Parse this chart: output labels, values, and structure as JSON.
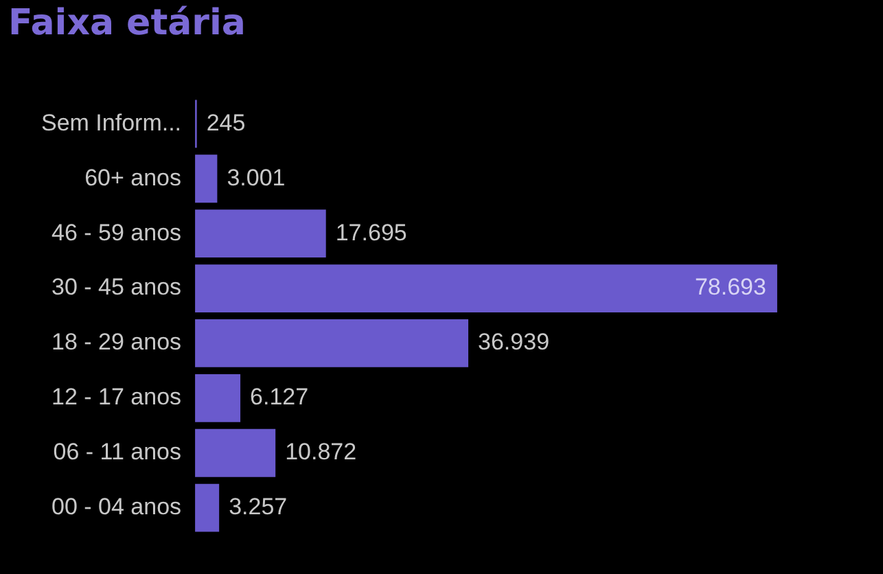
{
  "chart_data": {
    "type": "bar",
    "orientation": "horizontal",
    "title": "Faixa etária",
    "categories": [
      "Sem Inform...",
      "60+ anos",
      "46 - 59 anos",
      "30 - 45 anos",
      "18 - 29 anos",
      "12 - 17 anos",
      "06 - 11 anos",
      "00 - 04 anos"
    ],
    "values": [
      245,
      3001,
      17695,
      78693,
      36939,
      6127,
      10872,
      3257
    ],
    "value_labels": [
      "245",
      "3.001",
      "17.695",
      "78.693",
      "36.939",
      "6.127",
      "10.872",
      "3.257"
    ],
    "color": "#6a5acd",
    "tick_labels": "y"
  }
}
